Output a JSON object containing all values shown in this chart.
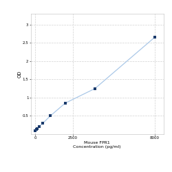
{
  "x": [
    0,
    62.5,
    125,
    250,
    500,
    1000,
    2000,
    4000,
    8000
  ],
  "y": [
    0.1,
    0.13,
    0.16,
    0.21,
    0.3,
    0.5,
    0.85,
    1.25,
    2.65
  ],
  "line_color": "#aac8e8",
  "marker_color": "#1a3a6b",
  "marker_size": 3.5,
  "line_width": 0.9,
  "xlabel_line1": "Mouse FPR1",
  "xlabel_line2": "Concentration (pg/ml)",
  "ylabel": "OD",
  "ytick_vals": [
    0.5,
    1.0,
    1.5,
    2.0,
    2.5,
    3.0
  ],
  "ytick_labels": [
    "0.5",
    "1",
    "1.5",
    "2",
    "2.5",
    "3"
  ],
  "xtick_vals": [
    0,
    2500,
    8000
  ],
  "xtick_labels": [
    "0",
    "2500",
    "8000"
  ],
  "xlim": [
    -300,
    8600
  ],
  "ylim": [
    0.0,
    3.3
  ],
  "grid_color": "#d0d0d0",
  "bg_color": "#ffffff",
  "tick_fontsize": 4.0,
  "label_fontsize": 4.5,
  "ylabel_fontsize": 5.0
}
